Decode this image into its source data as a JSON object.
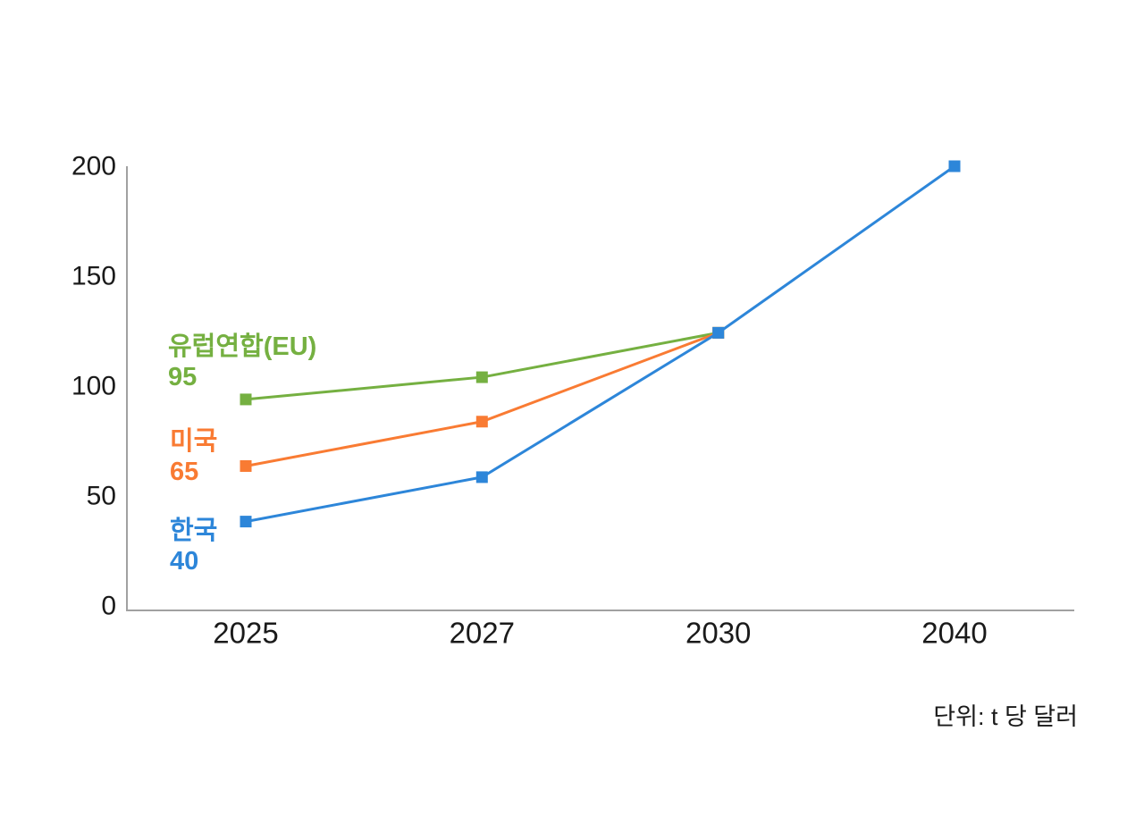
{
  "chart_data": {
    "type": "line",
    "title": "",
    "unit_note": "단위: t 당 달러",
    "categories": [
      "2025",
      "2027",
      "2030",
      "2040"
    ],
    "y_ticks": [
      "0",
      "50",
      "100",
      "150",
      "200"
    ],
    "ylim": [
      0,
      200
    ],
    "grid": false,
    "legend_position": "inline-left-of-lines",
    "axis_color": "#a1a1a1",
    "tick_text_color": "#1a1a1a",
    "series": [
      {
        "name": "유럽연합(EU)",
        "label_value": "95",
        "color": "#75B041",
        "x": [
          "2025",
          "2027",
          "2030"
        ],
        "values": [
          95,
          105,
          125
        ]
      },
      {
        "name": "미국",
        "label_value": "65",
        "color": "#F97B33",
        "x": [
          "2025",
          "2027",
          "2030"
        ],
        "values": [
          65,
          85,
          125
        ]
      },
      {
        "name": "한국",
        "label_value": "40",
        "color": "#2D86D9",
        "x": [
          "2025",
          "2027",
          "2030",
          "2040"
        ],
        "values": [
          40,
          60,
          125,
          200
        ]
      }
    ]
  }
}
